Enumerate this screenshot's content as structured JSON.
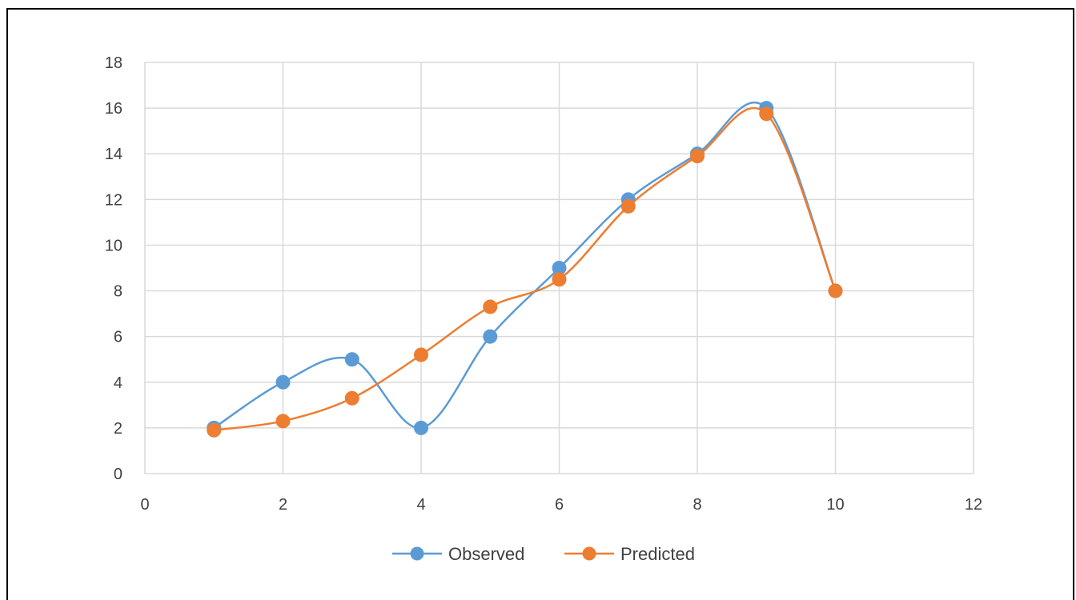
{
  "chart_data": {
    "type": "scatter",
    "title": "",
    "xlabel": "",
    "ylabel": "",
    "xlim": [
      0,
      12
    ],
    "ylim": [
      0,
      18
    ],
    "x_ticks": [
      0,
      2,
      4,
      6,
      8,
      10,
      12
    ],
    "y_ticks": [
      0,
      2,
      4,
      6,
      8,
      10,
      12,
      14,
      16,
      18
    ],
    "grid": true,
    "smooth_lines": true,
    "legend_position": "bottom",
    "series": [
      {
        "name": "Observed",
        "color": "#5b9bd5",
        "x": [
          1,
          2,
          3,
          4,
          5,
          6,
          7,
          8,
          9,
          10
        ],
        "y": [
          2,
          4,
          5,
          2,
          6,
          9,
          12,
          14,
          16,
          8
        ]
      },
      {
        "name": "Predicted",
        "color": "#ed7d31",
        "x": [
          1,
          2,
          3,
          4,
          5,
          6,
          7,
          8,
          9,
          10
        ],
        "y": [
          1.9,
          2.3,
          3.3,
          5.2,
          7.3,
          8.5,
          11.7,
          13.9,
          15.75,
          8
        ]
      }
    ]
  }
}
